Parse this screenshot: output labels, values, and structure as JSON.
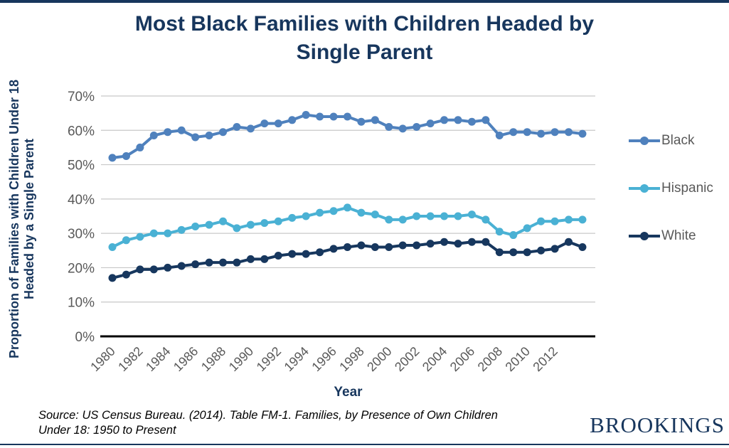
{
  "page": {
    "accent_color": "#17365d",
    "grid_color": "#c8c8c8",
    "tick_text_color": "#595959"
  },
  "chart_data": {
    "type": "line",
    "title": "Most Black Families with Children Headed by Single Parent",
    "title_lines": [
      "Most Black Families with Children Headed by",
      "Single Parent"
    ],
    "xlabel": "Year",
    "ylabel": "Proportion of Families with Children Under 18 Headed by a Single Parent",
    "ylabel_lines": [
      "Proportion of Families with Children Under 18",
      "Headed by a Single Parent"
    ],
    "ylim": [
      0,
      70
    ],
    "y_tick_values": [
      0,
      10,
      20,
      30,
      40,
      50,
      60,
      70
    ],
    "y_tick_labels": [
      "0%",
      "10%",
      "20%",
      "30%",
      "40%",
      "50%",
      "60%",
      "70%"
    ],
    "x_tick_years": [
      1980,
      1982,
      1984,
      1986,
      1988,
      1990,
      1992,
      1994,
      1996,
      1998,
      2000,
      2002,
      2004,
      2006,
      2008,
      2010,
      2012
    ],
    "grid": true,
    "legend_position": "right",
    "x": [
      1980,
      1981,
      1982,
      1983,
      1984,
      1985,
      1986,
      1987,
      1988,
      1989,
      1990,
      1991,
      1992,
      1993,
      1994,
      1995,
      1996,
      1997,
      1998,
      1999,
      2000,
      2001,
      2002,
      2003,
      2004,
      2005,
      2006,
      2007,
      2008,
      2009,
      2010,
      2011,
      2012,
      2013,
      2014
    ],
    "series": [
      {
        "name": "Black",
        "color": "#4f81bd",
        "values": [
          52,
          52.5,
          55,
          58.5,
          59.5,
          60,
          58,
          58.5,
          59.5,
          61,
          60.5,
          62,
          62,
          63,
          64.5,
          64,
          64,
          64,
          62.5,
          63,
          61,
          60.5,
          61,
          62,
          63,
          63,
          62.5,
          63,
          58.5,
          59.5,
          59.5,
          59,
          59.5,
          59.5,
          59
        ]
      },
      {
        "name": "Hispanic",
        "color": "#4ab1d4",
        "values": [
          26,
          28,
          29,
          30,
          30,
          31,
          32,
          32.5,
          33.5,
          31.5,
          32.5,
          33,
          33.5,
          34.5,
          35,
          36,
          36.5,
          37.5,
          36,
          35.5,
          34,
          34,
          35,
          35,
          35,
          35,
          35.5,
          34,
          30.5,
          29.5,
          31.5,
          33.5,
          33.5,
          34,
          34
        ]
      },
      {
        "name": "White",
        "color": "#17375e",
        "values": [
          17,
          18,
          19.5,
          19.5,
          20,
          20.5,
          21,
          21.5,
          21.5,
          21.5,
          22.5,
          22.5,
          23.5,
          24,
          24,
          24.5,
          25.5,
          26,
          26.5,
          26,
          26,
          26.5,
          26.5,
          27,
          27.5,
          27,
          27.5,
          27.5,
          24.5,
          24.5,
          24.5,
          25,
          25.5,
          27.5,
          26
        ]
      }
    ]
  },
  "footer": {
    "source": "Source: US Census Bureau. (2014). Table FM-1.  Families, by Presence of Own Children Under 18:  1950 to Present",
    "source_lines": [
      "Source: US Census Bureau. (2014). Table FM-1.  Families, by Presence of Own Children",
      "Under 18:  1950 to Present"
    ],
    "logo": "BROOKINGS"
  }
}
